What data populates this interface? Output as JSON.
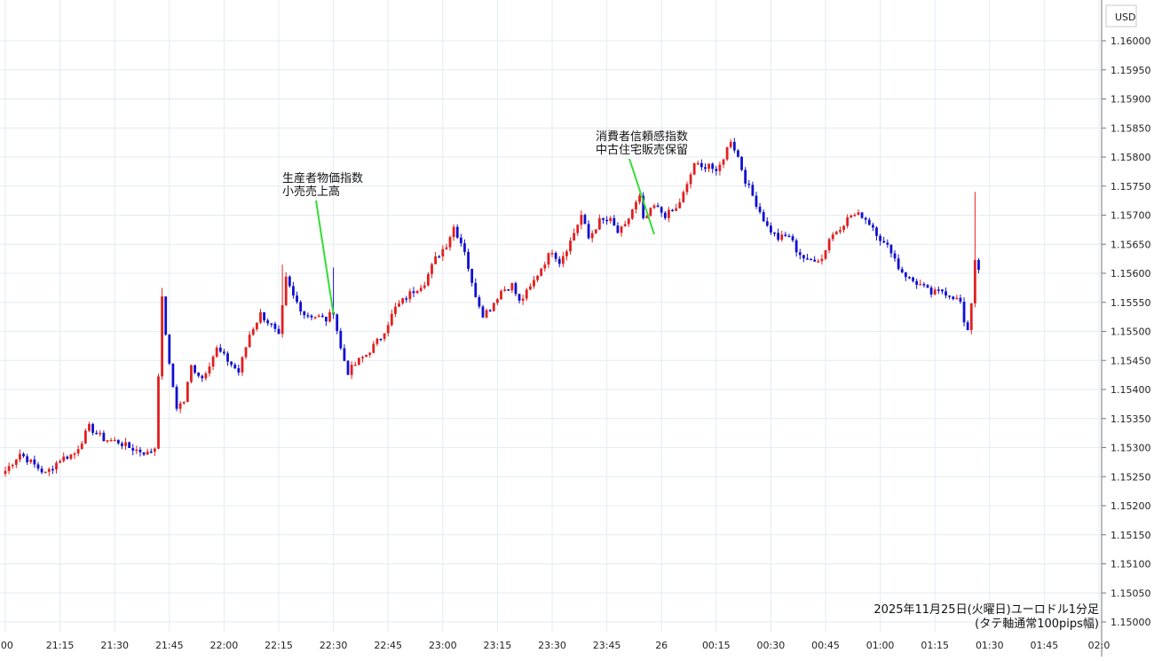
{
  "chart_data": {
    "type": "candlestick",
    "title": "2025年11月25日(火曜日)ユーロドル1分足",
    "subtitle": "(タテ軸通常100pips幅)",
    "unit": "USD",
    "ylim": [
      1.15,
      1.1607
    ],
    "x_ticks": [
      ":00",
      "21:15",
      "21:30",
      "21:45",
      "22:00",
      "22:15",
      "22:30",
      "22:45",
      "23:00",
      "23:15",
      "23:30",
      "23:45",
      "26",
      "00:15",
      "00:30",
      "00:45",
      "01:00",
      "01:15",
      "01:30",
      "01:45",
      "02:0"
    ],
    "y_ticks": [
      "1.16000",
      "1.15950",
      "1.15900",
      "1.15850",
      "1.15800",
      "1.15750",
      "1.15700",
      "1.15650",
      "1.15600",
      "1.15550",
      "1.15500",
      "1.15450",
      "1.15400",
      "1.15350",
      "1.15300",
      "1.15250",
      "1.15200",
      "1.15150",
      "1.15100",
      "1.15050",
      "1.15000"
    ],
    "up_color": "#e02020",
    "down_color": "#1010d0",
    "grid": true,
    "annotations": [
      {
        "lines": [
          "生産者物価指数",
          "小売売上高"
        ],
        "time": "22:30",
        "price": 1.1553,
        "line_color": "#33dd33"
      },
      {
        "lines": [
          "消費者信頼感指数",
          "中古住宅販売保留"
        ],
        "time": "23:58",
        "price": 1.15667,
        "line_color": "#33dd33"
      }
    ],
    "waypoints": [
      [
        0,
        1.1526
      ],
      [
        4,
        1.1529
      ],
      [
        8,
        1.1527
      ],
      [
        11,
        1.15255
      ],
      [
        15,
        1.1528
      ],
      [
        19,
        1.1529
      ],
      [
        23,
        1.15335
      ],
      [
        27,
        1.15315
      ],
      [
        31,
        1.1531
      ],
      [
        34,
        1.153
      ],
      [
        39,
        1.1529
      ],
      [
        41,
        1.153
      ],
      [
        43,
        1.15555
      ],
      [
        45,
        1.1544
      ],
      [
        47,
        1.1537
      ],
      [
        49,
        1.1538
      ],
      [
        51,
        1.1544
      ],
      [
        54,
        1.1542
      ],
      [
        58,
        1.1547
      ],
      [
        61,
        1.1545
      ],
      [
        64,
        1.1543
      ],
      [
        67,
        1.15495
      ],
      [
        70,
        1.1553
      ],
      [
        73,
        1.1551
      ],
      [
        75,
        1.1549
      ],
      [
        77,
        1.1559
      ],
      [
        79,
        1.1556
      ],
      [
        82,
        1.1553
      ],
      [
        86,
        1.15525
      ],
      [
        88,
        1.1552
      ],
      [
        90,
        1.15535
      ],
      [
        92,
        1.1547
      ],
      [
        94,
        1.1543
      ],
      [
        97,
        1.1545
      ],
      [
        99,
        1.1546
      ],
      [
        103,
        1.1549
      ],
      [
        107,
        1.1554
      ],
      [
        111,
        1.15565
      ],
      [
        115,
        1.15585
      ],
      [
        118,
        1.15625
      ],
      [
        121,
        1.1565
      ],
      [
        123,
        1.1568
      ],
      [
        126,
        1.1564
      ],
      [
        128,
        1.1558
      ],
      [
        131,
        1.1553
      ],
      [
        133,
        1.1554
      ],
      [
        136,
        1.1557
      ],
      [
        139,
        1.1558
      ],
      [
        141,
        1.1555
      ],
      [
        144,
        1.15575
      ],
      [
        147,
        1.1561
      ],
      [
        150,
        1.1564
      ],
      [
        152,
        1.1562
      ],
      [
        155,
        1.15655
      ],
      [
        158,
        1.157
      ],
      [
        160,
        1.1566
      ],
      [
        163,
        1.1569
      ],
      [
        166,
        1.1569
      ],
      [
        168,
        1.1567
      ],
      [
        170,
        1.1568
      ],
      [
        172,
        1.1571
      ],
      [
        174,
        1.1573
      ],
      [
        175,
        1.1569
      ],
      [
        178,
        1.15715
      ],
      [
        181,
        1.157
      ],
      [
        184,
        1.1571
      ],
      [
        187,
        1.1575
      ],
      [
        189,
        1.1579
      ],
      [
        191,
        1.1578
      ],
      [
        193,
        1.1579
      ],
      [
        195,
        1.1577
      ],
      [
        197,
        1.158
      ],
      [
        199,
        1.1583
      ],
      [
        201,
        1.158
      ],
      [
        203,
        1.1576
      ],
      [
        206,
        1.1572
      ],
      [
        209,
        1.1568
      ],
      [
        212,
        1.1566
      ],
      [
        215,
        1.15665
      ],
      [
        217,
        1.1564
      ],
      [
        220,
        1.1562
      ],
      [
        222,
        1.15625
      ],
      [
        224,
        1.15625
      ],
      [
        226,
        1.1566
      ],
      [
        229,
        1.1568
      ],
      [
        232,
        1.157
      ],
      [
        235,
        1.157
      ],
      [
        238,
        1.1568
      ],
      [
        241,
        1.1565
      ],
      [
        243,
        1.1564
      ],
      [
        245,
        1.1561
      ],
      [
        248,
        1.1559
      ],
      [
        251,
        1.1558
      ],
      [
        254,
        1.15565
      ],
      [
        257,
        1.1557
      ],
      [
        260,
        1.1556
      ],
      [
        262,
        1.1555
      ],
      [
        263,
        1.1551
      ],
      [
        264,
        1.15505
      ],
      [
        265,
        1.1555
      ],
      [
        266,
        1.15625
      ],
      [
        267,
        1.1561
      ]
    ],
    "spikes": [
      [
        43,
        1.15575
      ],
      [
        76,
        1.15615
      ],
      [
        90,
        1.1561
      ],
      [
        266,
        1.1574
      ]
    ]
  }
}
